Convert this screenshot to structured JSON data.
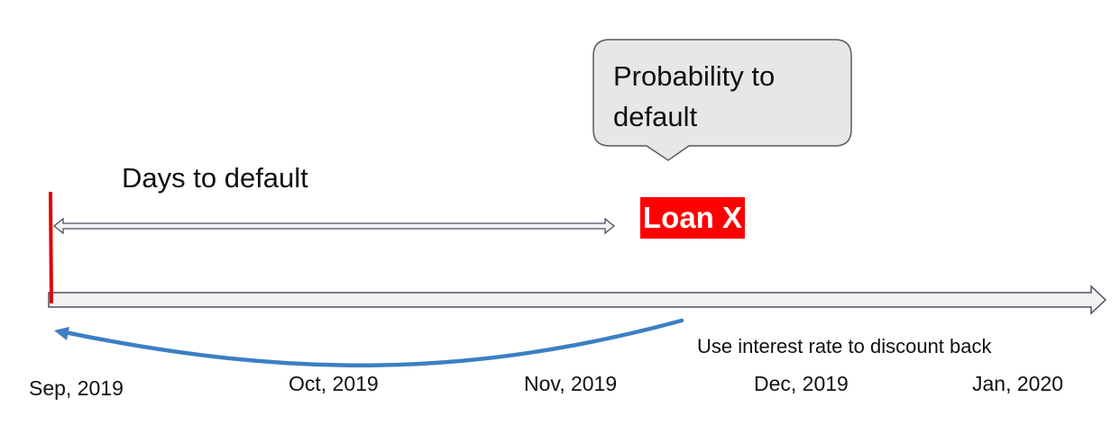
{
  "callout": {
    "text": "Probability to default"
  },
  "days_to_default": {
    "label": "Days to default"
  },
  "loan": {
    "label": "Loan X",
    "color": "#ff0000"
  },
  "discount": {
    "label": "Use interest rate to discount back",
    "arrow_color": "#3b7fc4"
  },
  "timeline": {
    "months": [
      {
        "label": "Sep, 2019"
      },
      {
        "label": "Oct, 2019"
      },
      {
        "label": "Nov, 2019"
      },
      {
        "label": "Dec, 2019"
      },
      {
        "label": "Jan, 2020"
      }
    ],
    "start_marker_color": "#e00000"
  }
}
